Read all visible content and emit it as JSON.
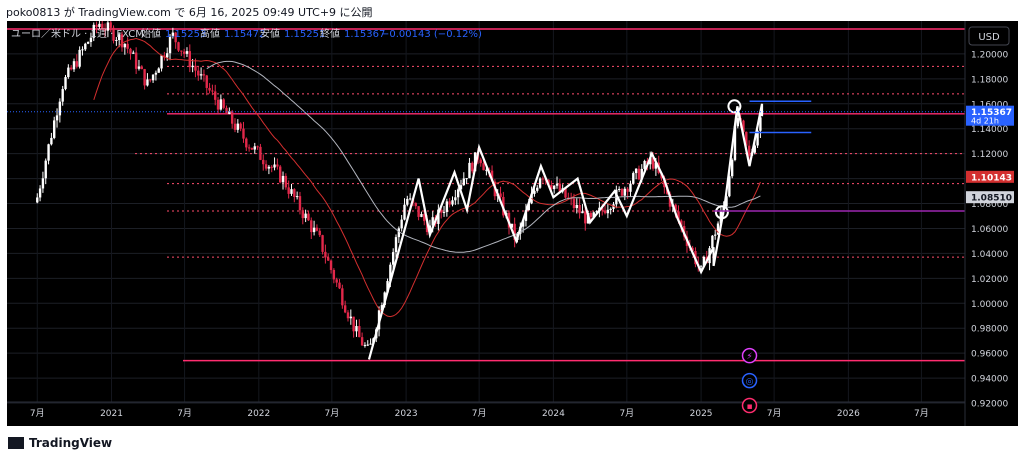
{
  "header": {
    "published_line": "poko0813 が TradingView.com で 6月 16, 2025 09:49 UTC+9 に公開"
  },
  "legend": {
    "symbol": "ユーロ／米ドル · 1週 · FXCM",
    "open_label": "始値",
    "open_value": "1.15253",
    "high_label": "高値",
    "high_value": "1.15472",
    "low_label": "安値",
    "low_value": "1.15251",
    "close_label": "終値",
    "close_value": "1.15367",
    "change": "−0.00143 (−0.12%)"
  },
  "currency_button": "USD",
  "price_labels": {
    "current": "1.15367",
    "countdown": "4d 21h",
    "ma_red": "1.10143",
    "ma_grey": "1.08510"
  },
  "colors": {
    "background": "#000000",
    "axis_text": "#d1d4dc",
    "candle_up": "#ffffff",
    "candle_down": "#e2284a",
    "ma_short": "#d32f2f",
    "ma_long": "#b2b5be",
    "current_price": "#2962ff",
    "support_line": "#ff2d6f",
    "dotted_level": "#ff4d6d"
  },
  "event_icons": [
    "lightning-icon",
    "globe-icon",
    "us-flag-icon"
  ],
  "brand": "TradingView",
  "chart_data": {
    "type": "candlestick",
    "timeframe": "1W",
    "y_axis_ticks": [
      "1.20000",
      "1.18000",
      "1.16000",
      "1.14000",
      "1.12000",
      "1.10000",
      "1.08000",
      "1.06000",
      "1.04000",
      "1.02000",
      "1.00000",
      "0.98000",
      "0.96000",
      "0.94000",
      "0.92000"
    ],
    "ylim": [
      0.912,
      1.22
    ],
    "x_axis_ticks": [
      "7月",
      "2021",
      "7月",
      "2022",
      "7月",
      "2023",
      "7月",
      "2024",
      "7月",
      "2025",
      "7月",
      "2026",
      "7月"
    ],
    "close_series": [
      [
        "2020-07",
        1.085
      ],
      [
        "2020-09",
        1.175
      ],
      [
        "2020-12",
        1.225
      ],
      [
        "2021-02",
        1.21
      ],
      [
        "2021-04",
        1.175
      ],
      [
        "2021-06",
        1.215
      ],
      [
        "2021-09",
        1.17
      ],
      [
        "2021-12",
        1.13
      ],
      [
        "2022-03",
        1.1
      ],
      [
        "2022-06",
        1.05
      ],
      [
        "2022-09",
        0.975
      ],
      [
        "2022-10",
        0.96
      ],
      [
        "2023-01",
        1.085
      ],
      [
        "2023-03",
        1.06
      ],
      [
        "2023-07",
        1.12
      ],
      [
        "2023-10",
        1.05
      ],
      [
        "2023-12",
        1.105
      ],
      [
        "2024-04",
        1.065
      ],
      [
        "2024-09",
        1.115
      ],
      [
        "2025-01",
        1.025
      ],
      [
        "2025-03",
        1.08
      ],
      [
        "2025-04",
        1.15
      ],
      [
        "2025-05",
        1.115
      ],
      [
        "2025-06",
        1.154
      ]
    ],
    "moving_averages": [
      {
        "role": "short",
        "last": 1.10143
      },
      {
        "role": "long",
        "last": 1.0851
      }
    ],
    "horizontal_levels": [
      1.19,
      1.168,
      1.152,
      1.12,
      1.096,
      1.074,
      1.037,
      0.954
    ],
    "current_price": 1.15367
  }
}
